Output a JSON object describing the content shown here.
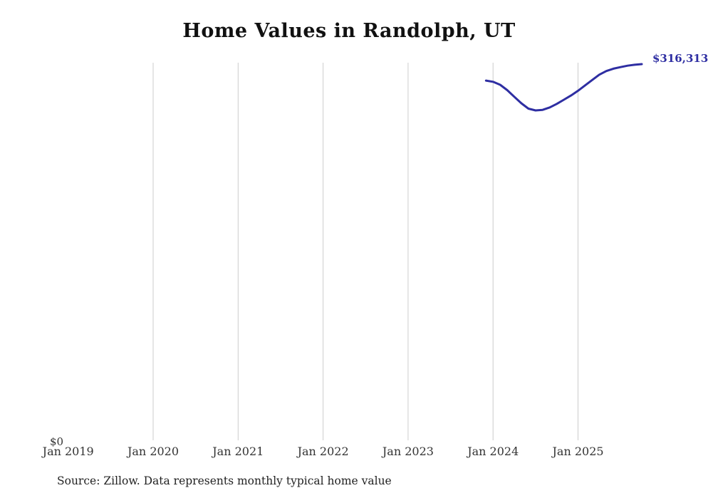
{
  "title": "Home Values in Randolph, UT",
  "end_label": "$316,313",
  "y_zero_label": "$0",
  "source_note": "Source: Zillow. Data represents monthly typical home value",
  "x_axis": {
    "ticks": [
      "Jan 2019",
      "Jan 2020",
      "Jan 2021",
      "Jan 2022",
      "Jan 2023",
      "Jan 2024",
      "Jan 2025"
    ]
  },
  "colors": {
    "line": "#2e2ea2",
    "end_label": "#2e2ea2",
    "grid": "#cccccc",
    "text": "#333333"
  },
  "chart_data": {
    "type": "line",
    "title": "Home Values in Randolph, UT",
    "x": [
      "Dec 2023",
      "Jan 2024",
      "Feb 2024",
      "Mar 2024",
      "Apr 2024",
      "May 2024",
      "Jun 2024",
      "Jul 2024",
      "Aug 2024",
      "Sep 2024",
      "Oct 2024",
      "Nov 2024",
      "Dec 2024",
      "Jan 2025",
      "Feb 2025",
      "Mar 2025",
      "Apr 2025",
      "May 2025",
      "Jun 2025",
      "Jul 2025",
      "Aug 2025",
      "Sep 2025",
      "Oct 2025"
    ],
    "values": [
      302500,
      301500,
      299000,
      294500,
      289000,
      283500,
      279000,
      277500,
      278000,
      280000,
      283000,
      286500,
      290000,
      294000,
      298500,
      303000,
      307500,
      310500,
      312500,
      313800,
      315000,
      315800,
      316313
    ],
    "series_name": "Typical home value",
    "xlabel": "",
    "ylabel": "",
    "ylim": [
      0,
      350000
    ],
    "x_tick_labels": [
      "Jan 2019",
      "Jan 2020",
      "Jan 2021",
      "Jan 2022",
      "Jan 2023",
      "Jan 2024",
      "Jan 2025"
    ],
    "y_tick_labels": [
      "$0"
    ],
    "grid": "vertical-yearly",
    "legend": "none",
    "end_value_label": "$316,313"
  }
}
